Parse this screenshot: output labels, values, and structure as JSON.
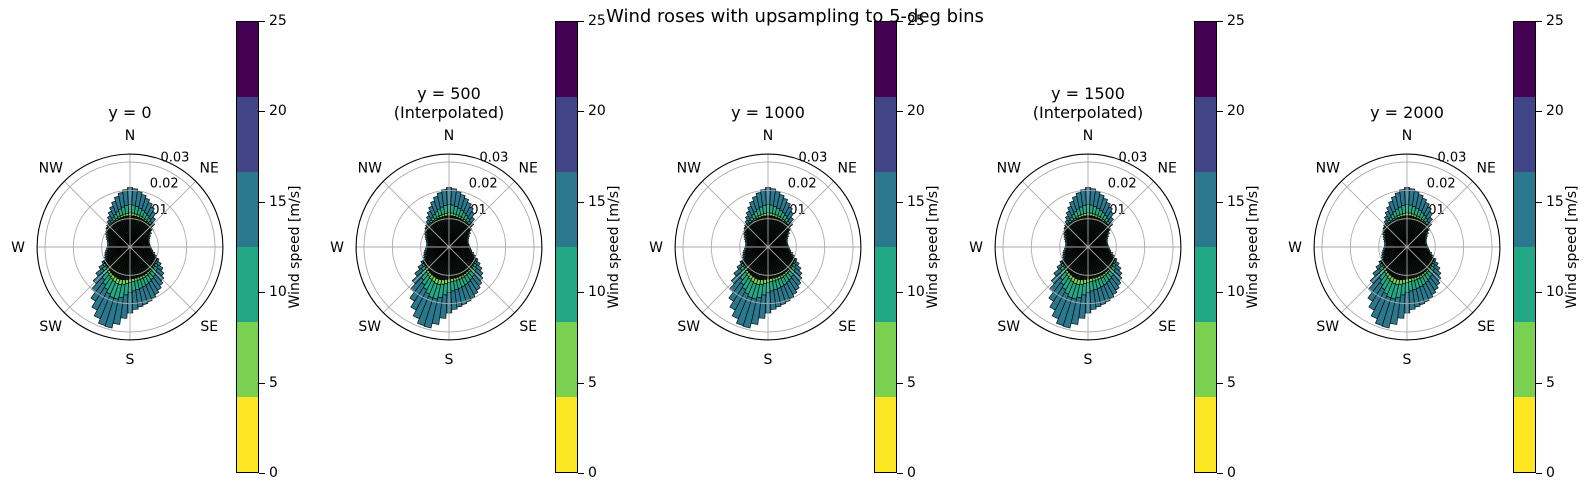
{
  "suptitle": "Wind roses with upsampling to 5-deg bins",
  "chart_data": {
    "type": "bar",
    "subtype": "windrose-polar-stacked-bar",
    "title": "Wind roses with upsampling to 5-deg bins",
    "panels": [
      {
        "title_line1": "y = 0",
        "title_line2": "",
        "interpolated": false
      },
      {
        "title_line1": "y = 500",
        "title_line2": "(Interpolated)",
        "interpolated": true
      },
      {
        "title_line1": "y = 1000",
        "title_line2": "",
        "interpolated": false
      },
      {
        "title_line1": "y = 1500",
        "title_line2": "(Interpolated)",
        "interpolated": true
      },
      {
        "title_line1": "y = 2000",
        "title_line2": "",
        "interpolated": false
      }
    ],
    "compass": [
      {
        "label": "N",
        "deg": 0
      },
      {
        "label": "NE",
        "deg": 45
      },
      {
        "label": "E",
        "deg": 90
      },
      {
        "label": "SE",
        "deg": 135
      },
      {
        "label": "S",
        "deg": 180
      },
      {
        "label": "SW",
        "deg": 225
      },
      {
        "label": "W",
        "deg": 270
      },
      {
        "label": "NW",
        "deg": 315
      }
    ],
    "radial_ticks": [
      0.01,
      0.02,
      0.03
    ],
    "radial_tick_labels": [
      "0.01",
      "0.02",
      "0.03"
    ],
    "r_max": 0.0328,
    "bin_width_deg": 5,
    "frequencies": [
      0.021,
      0.0206,
      0.0198,
      0.019,
      0.0181,
      0.0171,
      0.016,
      0.0148,
      0.0133,
      0.0118,
      0.0102,
      0.009,
      0.0082,
      0.0076,
      0.0072,
      0.007,
      0.007,
      0.0071,
      0.0073,
      0.0076,
      0.0081,
      0.0089,
      0.0099,
      0.0111,
      0.0124,
      0.0138,
      0.0151,
      0.0162,
      0.0172,
      0.0181,
      0.019,
      0.0198,
      0.0204,
      0.0209,
      0.0214,
      0.0221,
      0.0233,
      0.0252,
      0.0276,
      0.0293,
      0.0291,
      0.0274,
      0.0251,
      0.0227,
      0.0201,
      0.0176,
      0.0152,
      0.013,
      0.0112,
      0.01,
      0.0094,
      0.0091,
      0.0087,
      0.0083,
      0.008,
      0.0079,
      0.008,
      0.0083,
      0.0087,
      0.0092,
      0.0097,
      0.0102,
      0.0107,
      0.0112,
      0.012,
      0.0131,
      0.0143,
      0.0156,
      0.017,
      0.0183,
      0.0194,
      0.0203
    ],
    "speed_stack": {
      "dark_base": 0.01,
      "dark_slope": 0.1,
      "short_frac": 0.88,
      "split_fractions": [
        0.1,
        0.3,
        0.6
      ],
      "segment_colors": [
        "#0e140f",
        "#7ad151",
        "#22a884",
        "#2a788e"
      ]
    },
    "colorbar": {
      "label": "Wind speed [m/s]",
      "ticks": [
        0,
        5,
        10,
        15,
        20,
        25
      ],
      "vmin": 0,
      "vmax": 25,
      "n_segments": 6,
      "colors_low_to_high": [
        "#fde725",
        "#7ad151",
        "#22a884",
        "#2a788e",
        "#414487",
        "#440154"
      ]
    }
  }
}
